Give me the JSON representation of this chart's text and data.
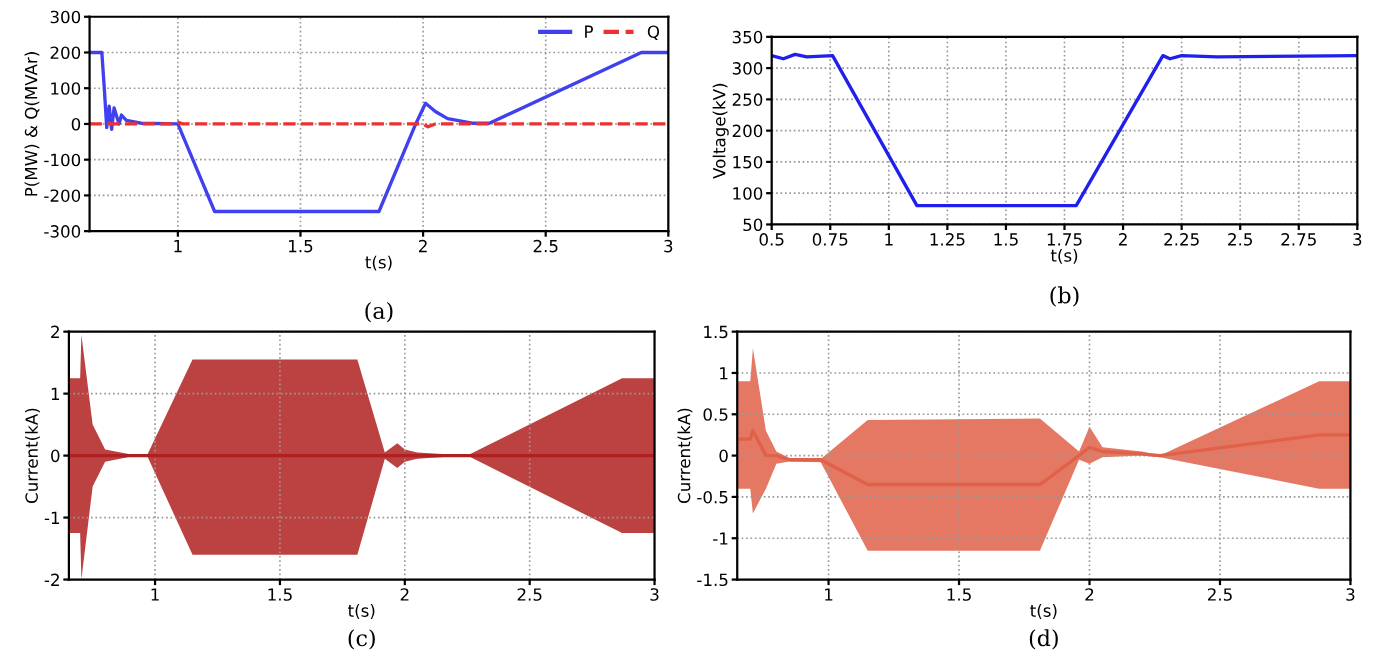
{
  "chart_data": [
    {
      "type": "line",
      "title": "(a)",
      "xlabel": "t(s)",
      "ylabel": "P(MW) & Q(MVAr)",
      "xlim": [
        0.64,
        3
      ],
      "xticks": [
        1,
        1.5,
        2,
        2.5,
        3
      ],
      "ylim": [
        -300,
        300
      ],
      "yticks": [
        -300,
        -200,
        -100,
        0,
        100,
        200,
        300
      ],
      "grid": true,
      "legend": "top right",
      "marker": "none",
      "series": [
        {
          "name": "P",
          "color": "#4040ee",
          "line_style": "solid",
          "x": [
            0.64,
            0.69,
            0.7,
            0.71,
            0.72,
            0.73,
            0.74,
            0.76,
            0.77,
            0.79,
            0.85,
            1.0,
            1.15,
            1.82,
            1.97,
            2.01,
            2.05,
            2.1,
            2.2,
            2.27,
            2.89,
            3.0
          ],
          "values": [
            200,
            200,
            100,
            -10,
            50,
            -15,
            45,
            0,
            25,
            10,
            2,
            0,
            -245,
            -245,
            0,
            58,
            35,
            15,
            2,
            2,
            200,
            200
          ]
        },
        {
          "name": "Q",
          "color": "#ee3030",
          "line_style": "dashed",
          "x": [
            0.64,
            0.98,
            1.0,
            1.02,
            2.0,
            2.02,
            2.05,
            3.0
          ],
          "values": [
            0,
            0,
            5,
            0,
            0,
            -8,
            0,
            0
          ]
        }
      ]
    },
    {
      "type": "line",
      "title": "(b)",
      "xlabel": "t(s)",
      "ylabel": "Voltage(kV)",
      "xlim": [
        0.5,
        3
      ],
      "xticks": [
        0.5,
        0.75,
        1,
        1.25,
        1.5,
        1.75,
        2,
        2.25,
        2.5,
        2.75,
        3
      ],
      "ylim": [
        50,
        350
      ],
      "yticks": [
        50,
        100,
        150,
        200,
        250,
        300,
        350
      ],
      "grid": true,
      "marker": "none",
      "series": [
        {
          "color": "#2020ee",
          "line_style": "solid",
          "x": [
            0.5,
            0.55,
            0.6,
            0.65,
            0.76,
            1.12,
            1.8,
            2.17,
            2.2,
            2.25,
            2.4,
            3.0
          ],
          "values": [
            320,
            315,
            322,
            318,
            320,
            80,
            80,
            320,
            315,
            320,
            318,
            320
          ]
        }
      ]
    },
    {
      "type": "line",
      "title": "(c)",
      "xlabel": "t(s)",
      "ylabel": "Current(kA)",
      "xlim": [
        0.655,
        3
      ],
      "xticks": [
        1,
        1.5,
        2,
        2.5,
        3
      ],
      "ylim": [
        -2,
        2
      ],
      "yticks": [
        -2,
        -1,
        0,
        1,
        2
      ],
      "grid": true,
      "marker": "none",
      "series": [
        {
          "color": "#b02020",
          "line_style": "solid",
          "x": [
            0.655,
            0.7,
            0.705,
            0.75,
            0.8,
            0.9,
            0.97,
            1.15,
            1.81,
            1.92,
            1.97,
            2.0,
            2.05,
            2.25,
            2.87,
            3.0
          ],
          "values": [
            0,
            0,
            0,
            0,
            0,
            0,
            0,
            0,
            0,
            0,
            0,
            0,
            0,
            0,
            0,
            0
          ],
          "lower": [
            -1.25,
            -1.25,
            -2,
            -0.5,
            -0.1,
            -0.02,
            -0.02,
            -1.6,
            -1.6,
            -0.05,
            -0.2,
            -0.1,
            -0.05,
            0,
            -1.25,
            -1.25
          ],
          "upper": [
            1.25,
            1.25,
            1.95,
            0.5,
            0.1,
            0.02,
            0.02,
            1.55,
            1.55,
            0.05,
            0.2,
            0.1,
            0.05,
            0,
            1.25,
            1.25
          ]
        }
      ]
    },
    {
      "type": "line",
      "title": "(d)",
      "xlabel": "t(s)",
      "ylabel": "Current(kA)",
      "xlim": [
        0.65,
        3
      ],
      "xticks": [
        1,
        1.5,
        2,
        2.5,
        3
      ],
      "ylim": [
        -1.5,
        1.5
      ],
      "yticks": [
        -1.5,
        -1,
        -0.5,
        0,
        0.5,
        1,
        1.5
      ],
      "grid": true,
      "marker": "none",
      "series": [
        {
          "color": "#e06048",
          "line_style": "solid",
          "x": [
            0.65,
            0.7,
            0.71,
            0.76,
            0.8,
            0.85,
            0.97,
            1.15,
            1.81,
            1.96,
            2.0,
            2.05,
            2.2,
            2.27,
            2.88,
            3.0
          ],
          "values": [
            0.2,
            0.2,
            0.3,
            0,
            0,
            -0.05,
            -0.05,
            -0.35,
            -0.35,
            0,
            0.1,
            0.05,
            0.02,
            0,
            0.25,
            0.25
          ],
          "lower": [
            -0.4,
            -0.4,
            -0.7,
            -0.4,
            -0.1,
            -0.07,
            -0.08,
            -1.15,
            -1.15,
            -0.05,
            -0.1,
            -0.02,
            0,
            -0.02,
            -0.4,
            -0.4
          ],
          "upper": [
            0.9,
            0.9,
            1.3,
            0.3,
            0.05,
            -0.03,
            -0.04,
            0.43,
            0.45,
            0.05,
            0.35,
            0.1,
            0.05,
            0,
            0.9,
            0.9
          ]
        }
      ]
    }
  ]
}
